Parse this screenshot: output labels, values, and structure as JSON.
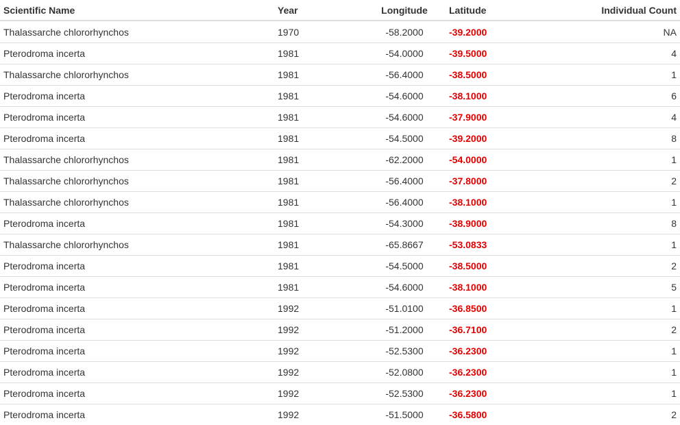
{
  "table": {
    "headers": {
      "scientific_name": "Scientific Name",
      "year": "Year",
      "longitude": "Longitude",
      "latitude": "Latitude",
      "individual_count": "Individual Count"
    },
    "rows": [
      {
        "scientific_name": "Thalassarche chlororhynchos",
        "year": "1970",
        "longitude": "-58.2000",
        "latitude": "-39.2000",
        "individual_count": "NA"
      },
      {
        "scientific_name": "Pterodroma incerta",
        "year": "1981",
        "longitude": "-54.0000",
        "latitude": "-39.5000",
        "individual_count": "4"
      },
      {
        "scientific_name": "Thalassarche chlororhynchos",
        "year": "1981",
        "longitude": "-56.4000",
        "latitude": "-38.5000",
        "individual_count": "1"
      },
      {
        "scientific_name": "Pterodroma incerta",
        "year": "1981",
        "longitude": "-54.6000",
        "latitude": "-38.1000",
        "individual_count": "6"
      },
      {
        "scientific_name": "Pterodroma incerta",
        "year": "1981",
        "longitude": "-54.6000",
        "latitude": "-37.9000",
        "individual_count": "4"
      },
      {
        "scientific_name": "Pterodroma incerta",
        "year": "1981",
        "longitude": "-54.5000",
        "latitude": "-39.2000",
        "individual_count": "8"
      },
      {
        "scientific_name": "Thalassarche chlororhynchos",
        "year": "1981",
        "longitude": "-62.2000",
        "latitude": "-54.0000",
        "individual_count": "1"
      },
      {
        "scientific_name": "Thalassarche chlororhynchos",
        "year": "1981",
        "longitude": "-56.4000",
        "latitude": "-37.8000",
        "individual_count": "2"
      },
      {
        "scientific_name": "Thalassarche chlororhynchos",
        "year": "1981",
        "longitude": "-56.4000",
        "latitude": "-38.1000",
        "individual_count": "1"
      },
      {
        "scientific_name": "Pterodroma incerta",
        "year": "1981",
        "longitude": "-54.3000",
        "latitude": "-38.9000",
        "individual_count": "8"
      },
      {
        "scientific_name": "Thalassarche chlororhynchos",
        "year": "1981",
        "longitude": "-65.8667",
        "latitude": "-53.0833",
        "individual_count": "1"
      },
      {
        "scientific_name": "Pterodroma incerta",
        "year": "1981",
        "longitude": "-54.5000",
        "latitude": "-38.5000",
        "individual_count": "2"
      },
      {
        "scientific_name": "Pterodroma incerta",
        "year": "1981",
        "longitude": "-54.6000",
        "latitude": "-38.1000",
        "individual_count": "5"
      },
      {
        "scientific_name": "Pterodroma incerta",
        "year": "1992",
        "longitude": "-51.0100",
        "latitude": "-36.8500",
        "individual_count": "1"
      },
      {
        "scientific_name": "Pterodroma incerta",
        "year": "1992",
        "longitude": "-51.2000",
        "latitude": "-36.7100",
        "individual_count": "2"
      },
      {
        "scientific_name": "Pterodroma incerta",
        "year": "1992",
        "longitude": "-52.5300",
        "latitude": "-36.2300",
        "individual_count": "1"
      },
      {
        "scientific_name": "Pterodroma incerta",
        "year": "1992",
        "longitude": "-52.0800",
        "latitude": "-36.2300",
        "individual_count": "1"
      },
      {
        "scientific_name": "Pterodroma incerta",
        "year": "1992",
        "longitude": "-52.5300",
        "latitude": "-36.2300",
        "individual_count": "1"
      },
      {
        "scientific_name": "Pterodroma incerta",
        "year": "1992",
        "longitude": "-51.5000",
        "latitude": "-36.5800",
        "individual_count": "2"
      }
    ]
  },
  "colors": {
    "latitude_highlight": "#e00000",
    "row_border": "#dddddd"
  }
}
